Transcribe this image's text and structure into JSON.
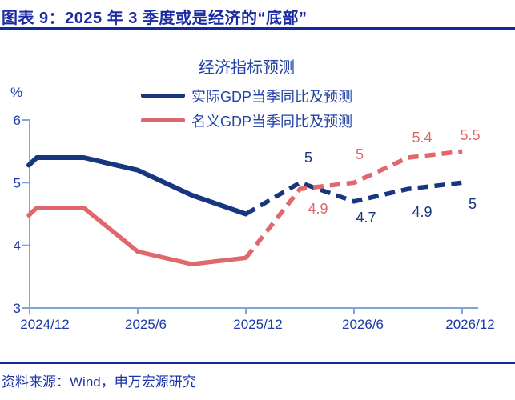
{
  "header": {
    "title": "图表 9：2025 年 3 季度或是经济的“底部”"
  },
  "footer": {
    "source": "资料来源：Wind，申万宏源研究"
  },
  "colors": {
    "header_blue": "#1b2ba3",
    "chart_text_blue": "#2243a5",
    "axis_light_blue": "#7ea6d8",
    "real_gdp_navy": "#17367f",
    "nominal_gdp_red": "#e0686c"
  },
  "chart_data": {
    "type": "line",
    "title": "经济指标预测",
    "ylabel": "%",
    "ylim": [
      3,
      6
    ],
    "ytick_labels": [
      "6",
      "5",
      "4",
      "3"
    ],
    "x": [
      "2024/12",
      "2025/3",
      "2025/6",
      "2025/9",
      "2025/12",
      "2026/3",
      "2026/6",
      "2026/9",
      "2026/12"
    ],
    "xtick_labels": [
      "2024/12",
      "2025/6",
      "2025/12",
      "2026/6",
      "2026/12"
    ],
    "legend_position": "top",
    "grid": "off",
    "forecast_note": "dashed segments after 2025/12 are forecasts",
    "series": [
      {
        "name": "实际GDP当季同比及预测",
        "color": "#17367f",
        "style": "solid_then_dashed",
        "solid_until_index": 4,
        "values": [
          5.4,
          5.4,
          5.2,
          4.8,
          4.5,
          5.0,
          4.7,
          4.9,
          5.0
        ],
        "point_labels": [
          "",
          "",
          "",
          "",
          "",
          "5",
          "4.7",
          "4.9",
          "5"
        ]
      },
      {
        "name": "名义GDP当季同比及预测",
        "color": "#e0686c",
        "style": "solid_then_dashed",
        "solid_until_index": 4,
        "values": [
          4.6,
          4.6,
          3.9,
          3.7,
          3.8,
          4.9,
          5.0,
          5.4,
          5.5
        ],
        "point_labels": [
          "",
          "",
          "",
          "",
          "",
          "4.9",
          "5",
          "5.4",
          "5.5"
        ]
      }
    ]
  }
}
